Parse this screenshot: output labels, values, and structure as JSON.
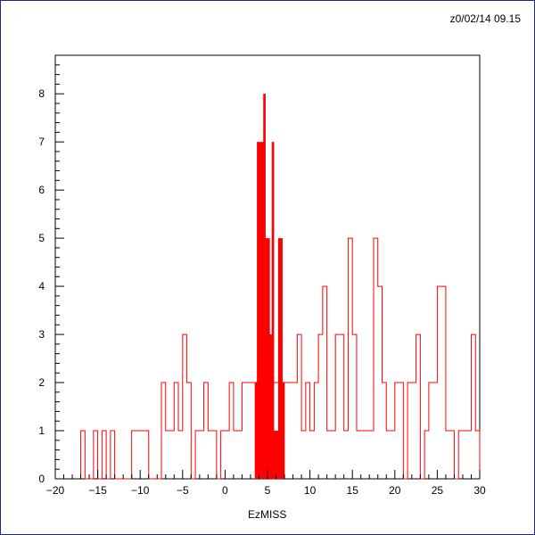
{
  "header": {
    "timestamp": "z0/02/14  09.15"
  },
  "chart_data": {
    "type": "histogram",
    "title": "",
    "xlabel": "EzMISS",
    "ylabel": "",
    "xlim": [
      -20,
      30
    ],
    "ylim": [
      0,
      8.8
    ],
    "xticks": [
      -20,
      -15,
      -10,
      -5,
      0,
      5,
      10,
      15,
      20,
      25,
      30
    ],
    "yticks": [
      0,
      1,
      2,
      3,
      4,
      5,
      6,
      7,
      8
    ],
    "bin_width": 0.5,
    "grid": false,
    "series": [
      {
        "style": "outline",
        "color": "#ff0000",
        "bins": [
          [
            -17,
            1
          ],
          [
            -15.5,
            1
          ],
          [
            -14.5,
            1
          ],
          [
            -13.5,
            1
          ],
          [
            -11,
            1
          ],
          [
            -10.5,
            1
          ],
          [
            -10,
            1
          ],
          [
            -9.5,
            1
          ],
          [
            -7.5,
            2
          ],
          [
            -7,
            1
          ],
          [
            -6.5,
            1
          ],
          [
            -6,
            2
          ],
          [
            -5.5,
            1
          ],
          [
            -5,
            3
          ],
          [
            -4.5,
            2
          ],
          [
            -3.5,
            1
          ],
          [
            -3,
            1
          ],
          [
            -2.5,
            2
          ],
          [
            -2,
            1
          ],
          [
            -1.5,
            1
          ],
          [
            -1,
            0
          ],
          [
            -0.5,
            1
          ],
          [
            0,
            1
          ],
          [
            0.5,
            2
          ],
          [
            1,
            1
          ],
          [
            1.5,
            1
          ],
          [
            2,
            2
          ],
          [
            2.5,
            2
          ],
          [
            3,
            2
          ],
          [
            3.5,
            2
          ],
          [
            4,
            2
          ],
          [
            4.5,
            2
          ],
          [
            5,
            2
          ],
          [
            5.5,
            2
          ],
          [
            6,
            2
          ],
          [
            6.5,
            2
          ],
          [
            7,
            2
          ],
          [
            7.5,
            2
          ],
          [
            8,
            2
          ],
          [
            8.5,
            3
          ],
          [
            9,
            1
          ],
          [
            9.5,
            2
          ],
          [
            10,
            1
          ],
          [
            10.5,
            2
          ],
          [
            11,
            3
          ],
          [
            11.5,
            4
          ],
          [
            12,
            1
          ],
          [
            12.5,
            1
          ],
          [
            13,
            3
          ],
          [
            13.5,
            3
          ],
          [
            14,
            1
          ],
          [
            14.5,
            5
          ],
          [
            15,
            3
          ],
          [
            15.5,
            1
          ],
          [
            16,
            1
          ],
          [
            16.5,
            1
          ],
          [
            17,
            1
          ],
          [
            17.5,
            5
          ],
          [
            18,
            4
          ],
          [
            18.5,
            2
          ],
          [
            19,
            1
          ],
          [
            19.5,
            1
          ],
          [
            20,
            2
          ],
          [
            20.5,
            2
          ],
          [
            21,
            0
          ],
          [
            21.5,
            2
          ],
          [
            22,
            2
          ],
          [
            22.5,
            3
          ],
          [
            23,
            0
          ],
          [
            23.5,
            1
          ],
          [
            24,
            2
          ],
          [
            24.5,
            2
          ],
          [
            25,
            4
          ],
          [
            25.5,
            4
          ],
          [
            26,
            1
          ],
          [
            26.5,
            1
          ],
          [
            27,
            0
          ],
          [
            27.5,
            1
          ],
          [
            28,
            1
          ],
          [
            28.5,
            1
          ],
          [
            29,
            3
          ],
          [
            29.5,
            1
          ]
        ]
      },
      {
        "style": "filled",
        "color": "#ff0000",
        "bins": [
          [
            3.5,
            2
          ],
          [
            3.75,
            7
          ],
          [
            4.0,
            7
          ],
          [
            4.25,
            7
          ],
          [
            4.5,
            8
          ],
          [
            4.75,
            5
          ],
          [
            5.0,
            5
          ],
          [
            5.25,
            3
          ],
          [
            5.5,
            7
          ],
          [
            5.75,
            1
          ],
          [
            6.0,
            1
          ],
          [
            6.25,
            5
          ],
          [
            6.5,
            5
          ],
          [
            6.75,
            2
          ]
        ],
        "bin_width": 0.25
      }
    ]
  }
}
